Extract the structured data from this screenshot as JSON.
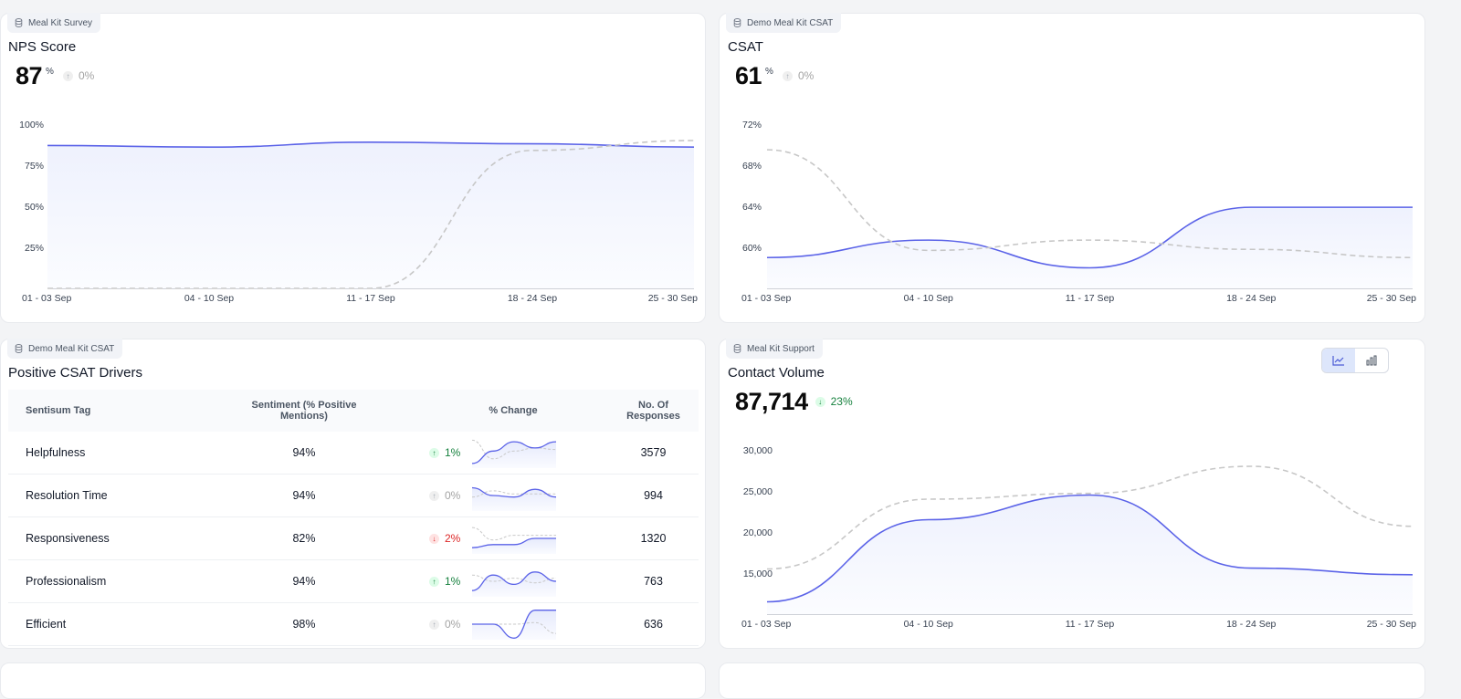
{
  "colors": {
    "primary": "#5b63e8",
    "comparison": "#c7c7c7",
    "positive": "#15803d",
    "negative": "#dc2626"
  },
  "nps": {
    "source": "Meal Kit Survey",
    "title": "NPS Score",
    "value": "87",
    "unit": "%",
    "delta": "0%",
    "delta_icon": "arrow-up-icon"
  },
  "csat": {
    "source": "Demo Meal Kit CSAT",
    "title": "CSAT",
    "value": "61",
    "unit": "%",
    "delta": "0%",
    "delta_icon": "arrow-up-icon"
  },
  "drivers": {
    "source": "Demo Meal Kit CSAT",
    "title": "Positive CSAT Drivers",
    "columns": [
      "Sentisum Tag",
      "Sentiment (% Positive Mentions)",
      "% Change",
      "No. Of Responses"
    ],
    "rows": [
      {
        "tag": "Helpfulness",
        "sentiment": "94%",
        "change": "1%",
        "direction": "up",
        "responses": "3579"
      },
      {
        "tag": "Resolution Time",
        "sentiment": "94%",
        "change": "0%",
        "direction": "flat",
        "responses": "994"
      },
      {
        "tag": "Responsiveness",
        "sentiment": "82%",
        "change": "2%",
        "direction": "down",
        "responses": "1320"
      },
      {
        "tag": "Professionalism",
        "sentiment": "94%",
        "change": "1%",
        "direction": "up",
        "responses": "763"
      },
      {
        "tag": "Efficient",
        "sentiment": "98%",
        "change": "0%",
        "direction": "flat",
        "responses": "636"
      }
    ]
  },
  "contact": {
    "source": "Meal Kit Support",
    "title": "Contact Volume",
    "value": "87,714",
    "delta": "23%",
    "delta_icon": "arrow-down-icon",
    "view_toggle": [
      "line-chart-icon",
      "bar-chart-icon"
    ],
    "view_selected": "line-chart-icon"
  },
  "chart_data": [
    {
      "type": "area",
      "categories": [
        "01 - 03 Sep",
        "04 - 10 Sep",
        "11 - 17 Sep",
        "18 - 24 Sep",
        "25 - 30 Sep"
      ],
      "yticks": [
        "25%",
        "50%",
        "75%",
        "100%"
      ],
      "ylim": [
        0,
        100
      ],
      "series": [
        {
          "values": [
            87,
            86,
            89,
            88,
            86
          ],
          "style": "solid-area"
        },
        {
          "values": [
            0,
            0,
            0,
            84,
            90
          ],
          "style": "dashed"
        }
      ]
    },
    {
      "type": "area",
      "categories": [
        "01 - 03 Sep",
        "04 - 10 Sep",
        "11 - 17 Sep",
        "18 - 24 Sep",
        "25 - 30 Sep"
      ],
      "yticks": [
        "60%",
        "64%",
        "68%",
        "72%"
      ],
      "ylim": [
        56,
        72
      ],
      "series": [
        {
          "values": [
            59,
            60.7,
            58,
            63.9,
            63.9
          ],
          "style": "solid-area"
        },
        {
          "values": [
            69.5,
            59.7,
            60.7,
            59.8,
            59
          ],
          "style": "dashed"
        }
      ]
    },
    {
      "type": "area",
      "categories": [
        "01 - 03 Sep",
        "04 - 10 Sep",
        "11 - 17 Sep",
        "18 - 24 Sep",
        "25 - 30 Sep"
      ],
      "yticks": [
        "15,000",
        "20,000",
        "25,000",
        "30,000"
      ],
      "ylim": [
        10000,
        30000
      ],
      "series": [
        {
          "values": [
            11500,
            21500,
            24500,
            15600,
            14800
          ],
          "style": "solid-area"
        },
        {
          "values": [
            15500,
            24000,
            24700,
            28000,
            20700
          ],
          "style": "dashed"
        }
      ]
    }
  ],
  "sparklines": [
    {
      "solid": [
        0.15,
        0.55,
        0.85,
        0.65,
        0.85
      ],
      "dashed": [
        0.9,
        0.3,
        0.55,
        0.65,
        0.6
      ]
    },
    {
      "solid": [
        0.75,
        0.5,
        0.45,
        0.7,
        0.45
      ],
      "dashed": [
        0.45,
        0.65,
        0.55,
        0.55,
        0.55
      ]
    },
    {
      "solid": [
        0.2,
        0.3,
        0.3,
        0.5,
        0.5
      ],
      "dashed": [
        0.85,
        0.45,
        0.6,
        0.6,
        0.6
      ]
    },
    {
      "solid": [
        0.2,
        0.7,
        0.4,
        0.8,
        0.5
      ],
      "dashed": [
        0.7,
        0.5,
        0.6,
        0.45,
        0.6
      ]
    },
    {
      "solid": [
        0.5,
        0.5,
        0.05,
        0.95,
        0.95
      ],
      "dashed": [
        0.5,
        0.5,
        0.5,
        0.55,
        0.2
      ]
    }
  ]
}
